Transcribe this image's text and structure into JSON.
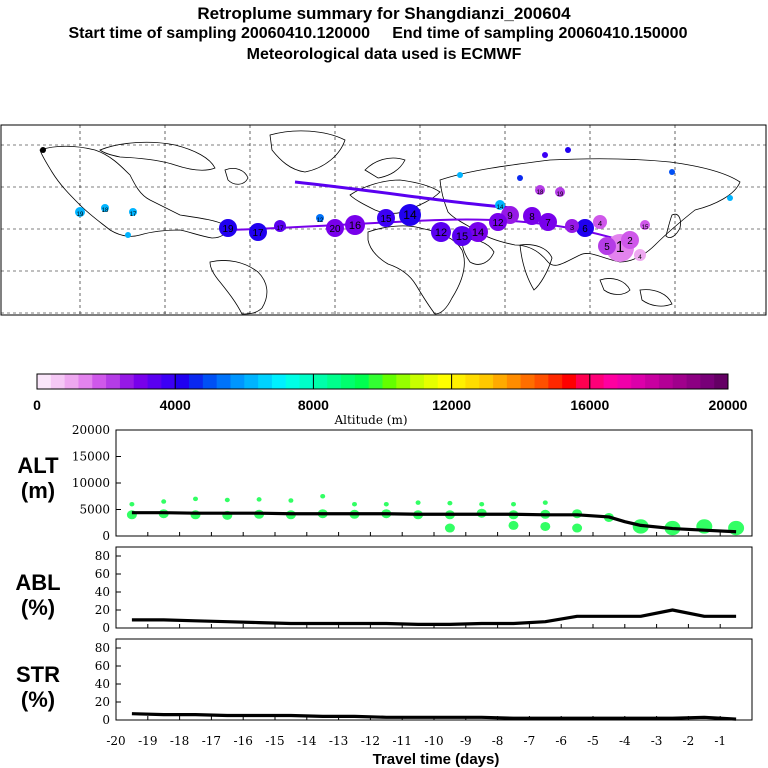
{
  "header": {
    "title": "Retroplume summary for Shangdianzi_200604",
    "sampling": "Start time of sampling 20060410.120000     End time of sampling 20060410.150000",
    "met": "Meteorological data used is ECMWF"
  },
  "colorbar": {
    "label": "Altitude (m)",
    "tick_labels": [
      "0",
      "4000",
      "8000",
      "12000",
      "16000",
      "20000"
    ],
    "colors": [
      "#fae6fa",
      "#f5c8f5",
      "#eea8f0",
      "#e383ee",
      "#cf58ea",
      "#b43ce6",
      "#9619e6",
      "#7800eb",
      "#5a00f0",
      "#3c00f5",
      "#2000f0",
      "#0a28f0",
      "#0050f5",
      "#0073fa",
      "#0096ff",
      "#00b4ff",
      "#00d2ff",
      "#00f0ff",
      "#00ffe6",
      "#00ffc8",
      "#00ffaa",
      "#00ff8c",
      "#00ff6e",
      "#00ff50",
      "#32ff32",
      "#64ff00",
      "#96ff00",
      "#c8ff00",
      "#e6ff00",
      "#ffff00",
      "#fff000",
      "#ffdc00",
      "#ffc800",
      "#ffaa00",
      "#ff8c00",
      "#ff6e00",
      "#ff5000",
      "#ff2800",
      "#ff0000",
      "#ff0050",
      "#ff0078",
      "#ff00a0",
      "#f000aa",
      "#dc00aa",
      "#c800a0",
      "#b40096",
      "#a0008c",
      "#8c0082",
      "#780078",
      "#640064"
    ]
  },
  "map": {
    "plume_numbers": [
      "1",
      "2",
      "3",
      "4",
      "5",
      "6",
      "7",
      "8",
      "9",
      "10",
      "11",
      "12",
      "13",
      "14",
      "15",
      "16",
      "17",
      "18",
      "19",
      "20"
    ]
  },
  "panels": [
    {
      "label": "ALT\n(m)",
      "yticks": [
        "20000",
        "15000",
        "10000",
        "5000",
        "0"
      ]
    },
    {
      "label": "ABL\n(%)",
      "yticks": [
        "80",
        "60",
        "40",
        "20",
        "0"
      ]
    },
    {
      "label": "STR\n(%)",
      "yticks": [
        "80",
        "60",
        "40",
        "20",
        "0"
      ]
    }
  ],
  "xaxis": {
    "label": "Travel time (days)",
    "ticks": [
      "-20",
      "-19",
      "-18",
      "-17",
      "-16",
      "-15",
      "-14",
      "-13",
      "-12",
      "-11",
      "-10",
      "-9",
      "-8",
      "-7",
      "-6",
      "-5",
      "-4",
      "-3",
      "-2",
      "-1"
    ]
  },
  "chart_data": [
    {
      "type": "line",
      "title": "ALT",
      "xlabel": "Travel time (days)",
      "ylabel": "ALT (m)",
      "xlim": [
        -20,
        0
      ],
      "ylim": [
        0,
        20000
      ],
      "x": [
        -19.5,
        -18.5,
        -17.5,
        -16.5,
        -15.5,
        -14.5,
        -13.5,
        -12.5,
        -11.5,
        -10.5,
        -9.5,
        -8.5,
        -7.5,
        -6.5,
        -5.5,
        -4.5,
        -4.0,
        -3.5,
        -2.5,
        -1.5,
        -0.5
      ],
      "y": [
        4400,
        4400,
        4300,
        4300,
        4300,
        4200,
        4200,
        4200,
        4200,
        4100,
        4100,
        4100,
        4100,
        4000,
        4000,
        3600,
        2700,
        2000,
        1400,
        1100,
        800
      ],
      "scatter_x": [
        -19.5,
        -19.5,
        -18.5,
        -18.5,
        -17.5,
        -17.5,
        -16.5,
        -16.5,
        -15.5,
        -15.5,
        -14.5,
        -14.5,
        -13.5,
        -13.5,
        -12.5,
        -12.5,
        -11.5,
        -11.5,
        -10.5,
        -10.5,
        -9.5,
        -9.5,
        -9.5,
        -8.5,
        -8.5,
        -7.5,
        -7.5,
        -7.5,
        -6.5,
        -6.5,
        -6.5,
        -5.5,
        -5.5,
        -4.5,
        -3.5,
        -2.5,
        -1.5,
        -0.5
      ],
      "scatter_y": [
        4000,
        6000,
        4200,
        6500,
        4000,
        7000,
        3900,
        6800,
        4100,
        6900,
        4000,
        6700,
        4200,
        7500,
        4100,
        6000,
        4200,
        6000,
        4000,
        6300,
        4000,
        6200,
        1500,
        4300,
        6000,
        4000,
        6000,
        2000,
        4100,
        6300,
        1800,
        4200,
        1500,
        3500,
        1800,
        1500,
        1800,
        1500
      ]
    },
    {
      "type": "line",
      "title": "ABL",
      "ylabel": "ABL (%)",
      "xlim": [
        -20,
        0
      ],
      "ylim": [
        0,
        90
      ],
      "x": [
        -19.5,
        -18.5,
        -17.5,
        -16.5,
        -15.5,
        -14.5,
        -13.5,
        -12.5,
        -11.5,
        -10.5,
        -9.5,
        -8.5,
        -7.5,
        -6.5,
        -5.5,
        -4.5,
        -3.5,
        -2.5,
        -1.5,
        -0.5
      ],
      "y": [
        9,
        9,
        8,
        7,
        6,
        5,
        5,
        5,
        5,
        4,
        4,
        5,
        5,
        7,
        13,
        13,
        13,
        20,
        13,
        13
      ]
    },
    {
      "type": "line",
      "title": "STR",
      "ylabel": "STR (%)",
      "xlim": [
        -20,
        0
      ],
      "ylim": [
        0,
        90
      ],
      "x": [
        -19.5,
        -18.5,
        -17.5,
        -16.5,
        -15.5,
        -14.5,
        -13.5,
        -12.5,
        -11.5,
        -10.5,
        -9.5,
        -8.5,
        -7.5,
        -6.5,
        -5.5,
        -4.5,
        -3.5,
        -2.5,
        -1.5,
        -0.5
      ],
      "y": [
        7,
        6,
        6,
        5,
        5,
        5,
        4,
        4,
        3,
        3,
        3,
        3,
        2,
        2,
        2,
        2,
        2,
        2,
        3,
        1
      ]
    }
  ]
}
